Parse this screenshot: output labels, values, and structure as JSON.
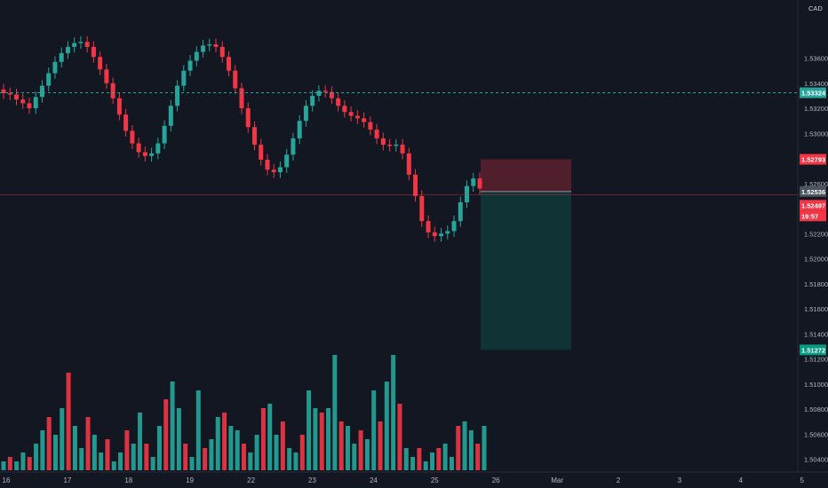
{
  "chart_data": {
    "type": "candlestick",
    "currency": "CAD",
    "y_range": [
      1.5034,
      1.5405
    ],
    "y_ticks": [
      "1.50400",
      "1.50600",
      "1.50800",
      "1.51000",
      "1.51200",
      "1.51400",
      "1.51600",
      "1.51800",
      "1.52000",
      "1.52200",
      "1.52600",
      "1.53000",
      "1.53200",
      "1.53400",
      "1.53600"
    ],
    "x_ticks": [
      "16",
      "17",
      "18",
      "19",
      "22",
      "23",
      "24",
      "25",
      "26",
      "Mar",
      "2",
      "3",
      "4",
      "5"
    ],
    "price_tags": {
      "dashed_line": {
        "text": "1.53324",
        "value": 1.53324,
        "color": "#26a69a"
      },
      "stop_loss": {
        "text": "1.52793",
        "value": 1.52793,
        "color": "#f23645"
      },
      "entry": {
        "text": "1.52536",
        "value": 1.52536,
        "color": "#4c525e"
      },
      "last_price": {
        "text": "1.52497",
        "value": 1.52497,
        "color": "#f23645"
      },
      "countdown": {
        "text": "19:57",
        "color": "#f23645"
      },
      "take_profit": {
        "text": "1.51272",
        "value": 1.51272,
        "color": "#089981"
      }
    },
    "position": {
      "side": "short",
      "entry": 1.52536,
      "stop": 1.52793,
      "target": 1.51272
    },
    "candles": {
      "points": [
        [
          1.5335,
          1.5332
        ],
        [
          1.5332,
          1.5331
        ],
        [
          1.5331,
          1.5327
        ],
        [
          1.5327,
          1.5324
        ],
        [
          1.5324,
          1.532
        ],
        [
          1.532,
          1.5329
        ],
        [
          1.5329,
          1.5338
        ],
        [
          1.5338,
          1.5348
        ],
        [
          1.5348,
          1.5357
        ],
        [
          1.5357,
          1.5364
        ],
        [
          1.5364,
          1.5369
        ],
        [
          1.5369,
          1.5372
        ],
        [
          1.5372,
          1.5373
        ],
        [
          1.5373,
          1.5369
        ],
        [
          1.5369,
          1.5361
        ],
        [
          1.5361,
          1.5351
        ],
        [
          1.5351,
          1.534
        ],
        [
          1.534,
          1.5328
        ],
        [
          1.5328,
          1.5315
        ],
        [
          1.5315,
          1.5302
        ],
        [
          1.5302,
          1.5292
        ],
        [
          1.5292,
          1.5285
        ],
        [
          1.5285,
          1.5282
        ],
        [
          1.5282,
          1.5284
        ],
        [
          1.5284,
          1.5292
        ],
        [
          1.5292,
          1.5306
        ],
        [
          1.5306,
          1.5322
        ],
        [
          1.5322,
          1.5338
        ],
        [
          1.5338,
          1.535
        ],
        [
          1.535,
          1.5358
        ],
        [
          1.5358,
          1.5365
        ],
        [
          1.5365,
          1.537
        ],
        [
          1.537,
          1.5371
        ],
        [
          1.5371,
          1.5369
        ],
        [
          1.5369,
          1.5361
        ],
        [
          1.5361,
          1.535
        ],
        [
          1.535,
          1.5336
        ],
        [
          1.5336,
          1.532
        ],
        [
          1.532,
          1.5305
        ],
        [
          1.5305,
          1.5291
        ],
        [
          1.5291,
          1.5279
        ],
        [
          1.5279,
          1.5271
        ],
        [
          1.5271,
          1.5269
        ],
        [
          1.5269,
          1.5273
        ],
        [
          1.5273,
          1.5283
        ],
        [
          1.5283,
          1.5296
        ],
        [
          1.5296,
          1.531
        ],
        [
          1.531,
          1.5322
        ],
        [
          1.5322,
          1.533
        ],
        [
          1.533,
          1.5334
        ],
        [
          1.5334,
          1.5333
        ],
        [
          1.5333,
          1.5328
        ],
        [
          1.5328,
          1.5322
        ],
        [
          1.5322,
          1.5317
        ],
        [
          1.5317,
          1.5314
        ],
        [
          1.5314,
          1.5312
        ],
        [
          1.5312,
          1.5309
        ],
        [
          1.5309,
          1.5303
        ],
        [
          1.5303,
          1.5296
        ],
        [
          1.5296,
          1.5291
        ],
        [
          1.5291,
          1.529
        ],
        [
          1.529,
          1.5291
        ],
        [
          1.5291,
          1.5284
        ],
        [
          1.5284,
          1.5267
        ],
        [
          1.5267,
          1.525
        ],
        [
          1.525,
          1.523
        ],
        [
          1.523,
          1.5221
        ],
        [
          1.5221,
          1.5218
        ],
        [
          1.5218,
          1.522
        ],
        [
          1.522,
          1.5222
        ],
        [
          1.5222,
          1.523
        ],
        [
          1.523,
          1.5245
        ],
        [
          1.5245,
          1.5258
        ],
        [
          1.5258,
          1.5264
        ],
        [
          1.5264,
          1.5256
        ]
      ]
    },
    "volume": [
      2,
      3,
      2,
      4,
      3,
      6,
      9,
      12,
      8,
      14,
      22,
      10,
      5,
      12,
      8,
      4,
      7,
      2,
      4,
      9,
      6,
      13,
      6,
      3,
      10,
      16,
      20,
      14,
      6,
      3,
      18,
      5,
      7,
      12,
      13,
      10,
      9,
      6,
      4,
      8,
      14,
      15,
      8,
      11,
      5,
      4,
      8,
      18,
      14,
      13,
      14,
      26,
      11,
      10,
      6,
      9,
      7,
      18,
      11,
      20,
      26,
      15,
      5,
      3,
      5,
      2,
      4,
      5,
      6,
      3,
      10,
      11,
      9,
      6,
      10
    ]
  }
}
